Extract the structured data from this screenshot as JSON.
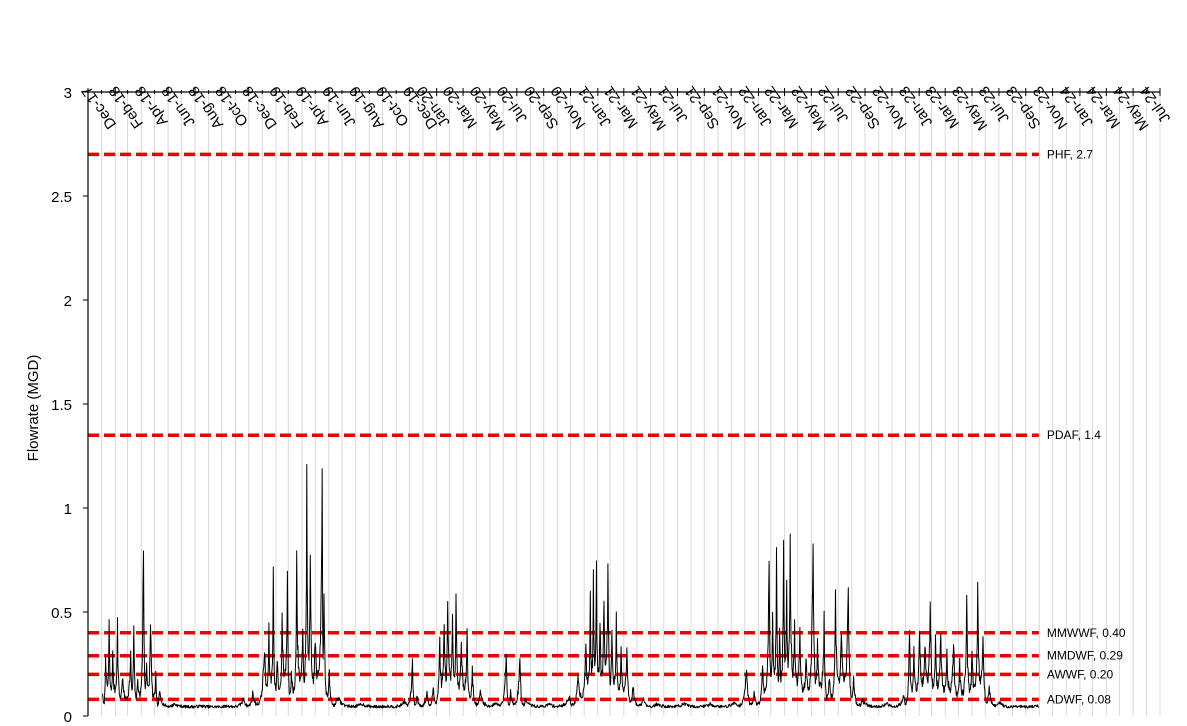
{
  "chart_data": {
    "type": "line",
    "title": "",
    "ylabel": "Flowrate (MGD)",
    "xlabel": "",
    "ylim": [
      0,
      3
    ],
    "y_ticks": [
      "0",
      "0.5",
      "1",
      "1.5",
      "2",
      "2.5",
      "3"
    ],
    "x_axis": "top",
    "x_range": [
      "2017-12-01",
      "2024-08-01"
    ],
    "x_tick_labels": [
      "Dec-17",
      "Feb-18",
      "Apr-18",
      "Jun-18",
      "Aug-18",
      "Oct-18",
      "Dec-18",
      "Feb-19",
      "Apr-19",
      "Jun-19",
      "Aug-19",
      "Oct-19",
      "Dec-19",
      "Jan-20",
      "Mar-20",
      "May-20",
      "Jul-20",
      "Sep-20",
      "Nov-20",
      "Jan-21",
      "Mar-21",
      "May-21",
      "Jul-21",
      "Sep-21",
      "Nov-21",
      "Jan-22",
      "Mar-22",
      "May-22",
      "Jul-22",
      "Sep-22",
      "Nov-22",
      "Jan-23",
      "Mar-23",
      "May-23",
      "Jul-23",
      "Sep-23",
      "Nov-23",
      "Jan-24",
      "Mar-24",
      "May-24",
      "Jul-24"
    ],
    "grid": "vertical",
    "reference_lines": [
      {
        "label": "PHF, 2.7",
        "value": 2.7
      },
      {
        "label": "PDAF, 1.4",
        "value": 1.35
      },
      {
        "label": "MMWWF, 0.40",
        "value": 0.4
      },
      {
        "label": "MMDWF, 0.29",
        "value": 0.29
      },
      {
        "label": "AWWF, 0.20",
        "value": 0.2
      },
      {
        "label": "ADWF, 0.08",
        "value": 0.08
      }
    ],
    "reference_line_color": "#ee0000",
    "series_color": "#000000",
    "series_end": "2023-10-31",
    "series_peaks": [
      {
        "x": "2018-01-03",
        "y": 0.12
      },
      {
        "x": "2018-01-10",
        "y": 0.34
      },
      {
        "x": "2018-01-18",
        "y": 0.44
      },
      {
        "x": "2018-01-26",
        "y": 0.3
      },
      {
        "x": "2018-02-06",
        "y": 0.45
      },
      {
        "x": "2018-02-17",
        "y": 0.2
      },
      {
        "x": "2018-03-08",
        "y": 0.3
      },
      {
        "x": "2018-03-15",
        "y": 0.45
      },
      {
        "x": "2018-03-24",
        "y": 0.2
      },
      {
        "x": "2018-04-06",
        "y": 0.9
      },
      {
        "x": "2018-04-13",
        "y": 0.3
      },
      {
        "x": "2018-04-22",
        "y": 0.52
      },
      {
        "x": "2018-05-04",
        "y": 0.2
      },
      {
        "x": "2018-05-12",
        "y": 0.12
      },
      {
        "x": "2018-06-15",
        "y": 0.06
      },
      {
        "x": "2018-08-15",
        "y": 0.05
      },
      {
        "x": "2018-10-15",
        "y": 0.05
      },
      {
        "x": "2018-11-20",
        "y": 0.09
      },
      {
        "x": "2018-12-10",
        "y": 0.11
      },
      {
        "x": "2019-01-06",
        "y": 0.35
      },
      {
        "x": "2019-01-16",
        "y": 0.4
      },
      {
        "x": "2019-01-26",
        "y": 0.67
      },
      {
        "x": "2019-02-04",
        "y": 0.3
      },
      {
        "x": "2019-02-15",
        "y": 0.48
      },
      {
        "x": "2019-02-27",
        "y": 0.68
      },
      {
        "x": "2019-03-08",
        "y": 0.25
      },
      {
        "x": "2019-03-20",
        "y": 0.72
      },
      {
        "x": "2019-04-03",
        "y": 0.4
      },
      {
        "x": "2019-04-12",
        "y": 1.11
      },
      {
        "x": "2019-04-20",
        "y": 0.7
      },
      {
        "x": "2019-05-01",
        "y": 0.4
      },
      {
        "x": "2019-05-17",
        "y": 1.35
      },
      {
        "x": "2019-05-21",
        "y": 0.66
      },
      {
        "x": "2019-06-02",
        "y": 0.2
      },
      {
        "x": "2019-06-20",
        "y": 0.1
      },
      {
        "x": "2019-08-15",
        "y": 0.06
      },
      {
        "x": "2019-10-15",
        "y": 0.05
      },
      {
        "x": "2019-11-20",
        "y": 0.08
      },
      {
        "x": "2019-12-08",
        "y": 0.27
      },
      {
        "x": "2019-12-18",
        "y": 0.1
      },
      {
        "x": "2020-01-10",
        "y": 0.12
      },
      {
        "x": "2020-01-24",
        "y": 0.15
      },
      {
        "x": "2020-02-08",
        "y": 0.38
      },
      {
        "x": "2020-02-18",
        "y": 0.48
      },
      {
        "x": "2020-02-26",
        "y": 0.53
      },
      {
        "x": "2020-03-08",
        "y": 0.45
      },
      {
        "x": "2020-03-16",
        "y": 0.54
      },
      {
        "x": "2020-03-28",
        "y": 0.35
      },
      {
        "x": "2020-04-10",
        "y": 0.4
      },
      {
        "x": "2020-04-22",
        "y": 0.22
      },
      {
        "x": "2020-05-10",
        "y": 0.12
      },
      {
        "x": "2020-06-15",
        "y": 0.07
      },
      {
        "x": "2020-07-08",
        "y": 0.32
      },
      {
        "x": "2020-07-18",
        "y": 0.12
      },
      {
        "x": "2020-08-08",
        "y": 0.3
      },
      {
        "x": "2020-08-20",
        "y": 0.08
      },
      {
        "x": "2020-10-15",
        "y": 0.06
      },
      {
        "x": "2020-11-28",
        "y": 0.1
      },
      {
        "x": "2020-12-18",
        "y": 0.22
      },
      {
        "x": "2021-01-05",
        "y": 0.38
      },
      {
        "x": "2021-01-15",
        "y": 0.55
      },
      {
        "x": "2021-01-22",
        "y": 0.63
      },
      {
        "x": "2021-01-29",
        "y": 0.71
      },
      {
        "x": "2021-02-06",
        "y": 0.5
      },
      {
        "x": "2021-02-15",
        "y": 0.65
      },
      {
        "x": "2021-02-24",
        "y": 0.76
      },
      {
        "x": "2021-03-05",
        "y": 0.4
      },
      {
        "x": "2021-03-15",
        "y": 0.45
      },
      {
        "x": "2021-03-26",
        "y": 0.3
      },
      {
        "x": "2021-04-08",
        "y": 0.35
      },
      {
        "x": "2021-04-22",
        "y": 0.15
      },
      {
        "x": "2021-05-15",
        "y": 0.09
      },
      {
        "x": "2021-06-15",
        "y": 0.06
      },
      {
        "x": "2021-08-15",
        "y": 0.06
      },
      {
        "x": "2021-10-15",
        "y": 0.06
      },
      {
        "x": "2021-12-10",
        "y": 0.07
      },
      {
        "x": "2022-01-05",
        "y": 0.25
      },
      {
        "x": "2022-01-22",
        "y": 0.12
      },
      {
        "x": "2022-02-10",
        "y": 0.25
      },
      {
        "x": "2022-02-25",
        "y": 0.79
      },
      {
        "x": "2022-03-05",
        "y": 0.5
      },
      {
        "x": "2022-03-14",
        "y": 0.82
      },
      {
        "x": "2022-03-21",
        "y": 0.4
      },
      {
        "x": "2022-03-30",
        "y": 0.93
      },
      {
        "x": "2022-04-06",
        "y": 0.6
      },
      {
        "x": "2022-04-14",
        "y": 1.04
      },
      {
        "x": "2022-04-24",
        "y": 0.45
      },
      {
        "x": "2022-05-06",
        "y": 0.4
      },
      {
        "x": "2022-05-20",
        "y": 0.3
      },
      {
        "x": "2022-06-05",
        "y": 0.95
      },
      {
        "x": "2022-06-15",
        "y": 0.35
      },
      {
        "x": "2022-06-30",
        "y": 0.45
      },
      {
        "x": "2022-07-12",
        "y": 0.2
      },
      {
        "x": "2022-07-26",
        "y": 0.57
      },
      {
        "x": "2022-08-08",
        "y": 0.4
      },
      {
        "x": "2022-08-24",
        "y": 0.71
      },
      {
        "x": "2022-09-05",
        "y": 0.2
      },
      {
        "x": "2022-09-25",
        "y": 0.08
      },
      {
        "x": "2022-11-20",
        "y": 0.06
      },
      {
        "x": "2022-12-28",
        "y": 0.1
      },
      {
        "x": "2023-01-10",
        "y": 0.44
      },
      {
        "x": "2023-01-20",
        "y": 0.3
      },
      {
        "x": "2023-02-02",
        "y": 0.43
      },
      {
        "x": "2023-02-14",
        "y": 0.4
      },
      {
        "x": "2023-02-26",
        "y": 0.61
      },
      {
        "x": "2023-03-10",
        "y": 0.35
      },
      {
        "x": "2023-03-22",
        "y": 0.43
      },
      {
        "x": "2023-04-05",
        "y": 0.3
      },
      {
        "x": "2023-04-20",
        "y": 0.4
      },
      {
        "x": "2023-05-04",
        "y": 0.25
      },
      {
        "x": "2023-05-20",
        "y": 0.55
      },
      {
        "x": "2023-06-01",
        "y": 0.3
      },
      {
        "x": "2023-06-14",
        "y": 0.6
      },
      {
        "x": "2023-06-26",
        "y": 0.4
      },
      {
        "x": "2023-07-10",
        "y": 0.15
      },
      {
        "x": "2023-08-01",
        "y": 0.07
      },
      {
        "x": "2023-09-15",
        "y": 0.05
      },
      {
        "x": "2023-10-31",
        "y": 0.05
      }
    ]
  }
}
